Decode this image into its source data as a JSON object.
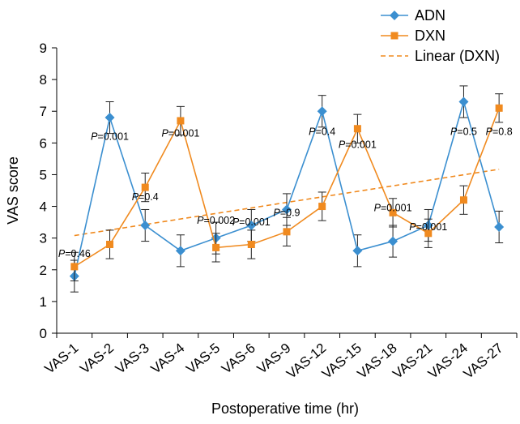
{
  "chart_data": {
    "type": "line",
    "title": "",
    "xlabel": "Postoperative time (hr)",
    "ylabel": "VAS score",
    "ylim": [
      0,
      9
    ],
    "yticks": [
      0,
      1,
      2,
      3,
      4,
      5,
      6,
      7,
      8,
      9
    ],
    "grid": false,
    "legend_position": "top-right",
    "categories": [
      "VAS-1",
      "VAS-2",
      "VAS-3",
      "VAS-4",
      "VAS-5",
      "VAS-6",
      "VAS-9",
      "VAS-12",
      "VAS-15",
      "VAS-18",
      "VAS-21",
      "VAS-24",
      "VAS-27"
    ],
    "series": [
      {
        "name": "ADN",
        "color": "#3b8fd0",
        "marker": "diamond",
        "values": [
          1.8,
          6.8,
          3.4,
          2.6,
          3.0,
          3.4,
          3.9,
          7.0,
          2.6,
          2.9,
          3.4,
          7.3,
          3.35
        ],
        "error": [
          0.5,
          0.5,
          0.5,
          0.5,
          0.5,
          0.5,
          0.5,
          0.5,
          0.5,
          0.5,
          0.5,
          0.5,
          0.5
        ]
      },
      {
        "name": "DXN",
        "color": "#f08a1f",
        "marker": "square",
        "values": [
          2.1,
          2.8,
          4.6,
          6.7,
          2.7,
          2.8,
          3.2,
          4.0,
          6.45,
          3.8,
          3.15,
          4.2,
          7.1
        ],
        "error": [
          0.45,
          0.45,
          0.45,
          0.45,
          0.45,
          0.45,
          0.45,
          0.45,
          0.45,
          0.45,
          0.45,
          0.45,
          0.45
        ]
      }
    ],
    "trendline": {
      "name": "Linear (DXN)",
      "color": "#f08a1f",
      "style": "dashed",
      "start": 3.08,
      "end": 5.17
    },
    "annotations": [
      {
        "category": "VAS-1",
        "text": "=0.46",
        "y": 2.5
      },
      {
        "category": "VAS-2",
        "text": "=0.001",
        "y": 6.2
      },
      {
        "category": "VAS-3",
        "text": "=0.4",
        "y": 4.3
      },
      {
        "category": "VAS-4",
        "text": "=0.001",
        "y": 6.3
      },
      {
        "category": "VAS-5",
        "text": "=0.002",
        "y": 3.55
      },
      {
        "category": "VAS-6",
        "text": "=0.001",
        "y": 3.5
      },
      {
        "category": "VAS-9",
        "text": "=0.9",
        "y": 3.8
      },
      {
        "category": "VAS-12",
        "text": "=0.4",
        "y": 6.35
      },
      {
        "category": "VAS-15",
        "text": "=0.001",
        "y": 5.95
      },
      {
        "category": "VAS-18",
        "text": "=0.001",
        "y": 3.95
      },
      {
        "category": "VAS-21",
        "text": "=0.001",
        "y": 3.35
      },
      {
        "category": "VAS-24",
        "text": "=0.5",
        "y": 6.35
      },
      {
        "category": "VAS-27",
        "text": "=0.8",
        "y": 6.35
      }
    ],
    "p_prefix": "P"
  }
}
